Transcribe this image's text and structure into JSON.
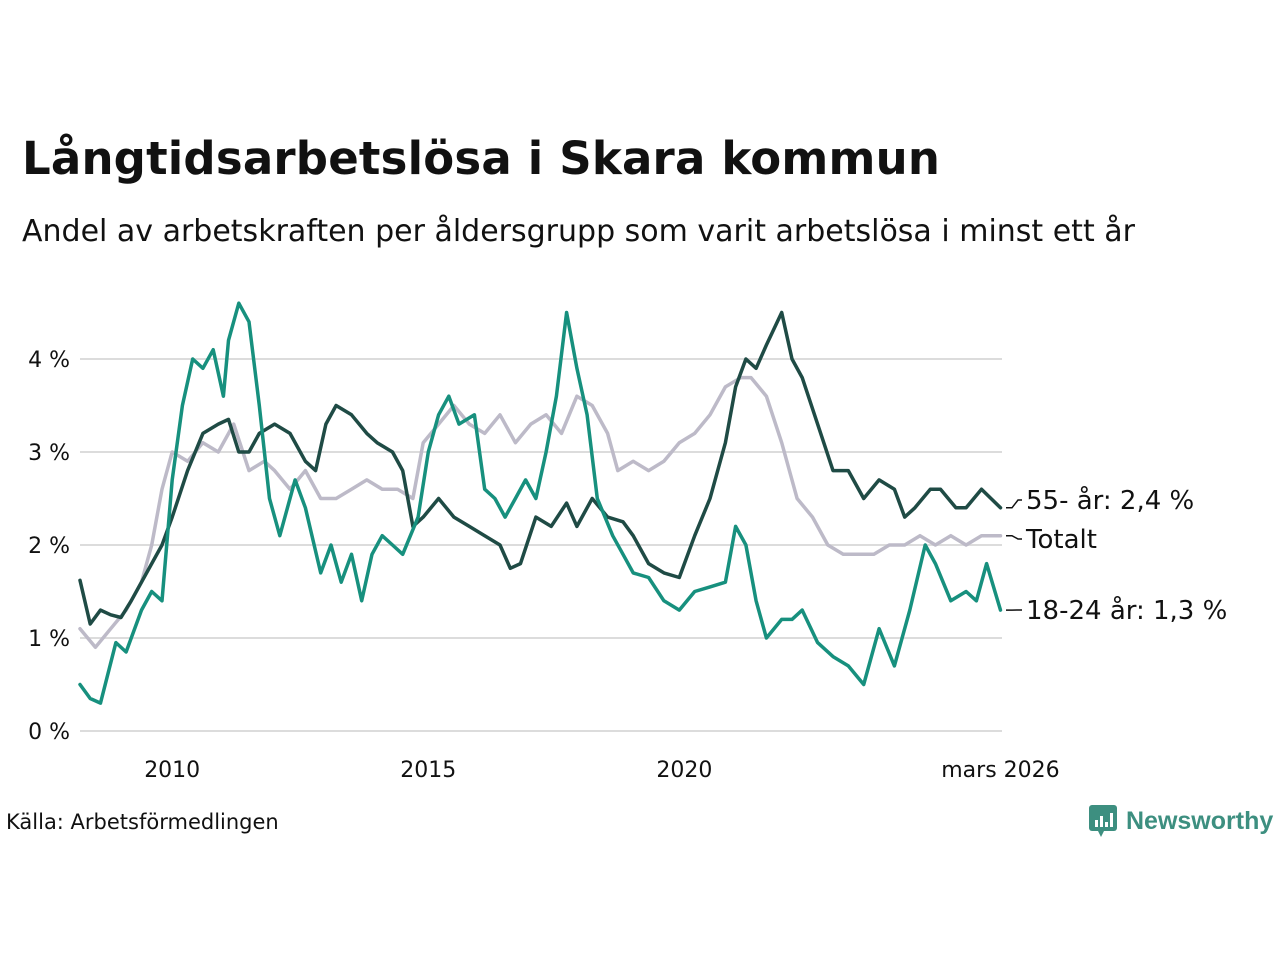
{
  "header": {
    "title": "Långtidsarbetslösa i Skara kommun",
    "subtitle": "Andel av arbetskraften per åldersgrupp som varit arbetslösa i minst ett år"
  },
  "footer": {
    "source": "Källa: Arbetsförmedlingen",
    "brand": "Newsworthy"
  },
  "colors": {
    "series_55": "#1f4b45",
    "series_total": "#bdbac8",
    "series_18_24": "#17907e",
    "grid": "#dcdcdc"
  },
  "chart_data": {
    "type": "line",
    "title": "Långtidsarbetslösa i Skara kommun",
    "subtitle": "Andel av arbetskraften per åldersgrupp som varit arbetslösa i minst ett år",
    "xlabel": "",
    "ylabel": "",
    "xlim": [
      2008.2,
      2026.2
    ],
    "ylim": [
      0,
      4.6
    ],
    "yticks": [
      0,
      1,
      2,
      3,
      4
    ],
    "ytick_labels": [
      "0 %",
      "1 %",
      "2 %",
      "3 %",
      "4 %"
    ],
    "xticks": [
      2010,
      2015,
      2020,
      2026.17
    ],
    "xtick_labels": [
      "2010",
      "2015",
      "2020",
      "mars 2026"
    ],
    "grid": true,
    "legend": "direct labels at right end",
    "series": [
      {
        "name": "Totalt",
        "label": "Totalt",
        "x": [
          2008.2,
          2008.5,
          2008.8,
          2009.1,
          2009.4,
          2009.6,
          2009.8,
          2010.0,
          2010.3,
          2010.6,
          2010.9,
          2011.2,
          2011.5,
          2011.8,
          2012.0,
          2012.3,
          2012.6,
          2012.9,
          2013.2,
          2013.5,
          2013.8,
          2014.1,
          2014.4,
          2014.7,
          2014.9,
          2015.2,
          2015.5,
          2015.8,
          2016.1,
          2016.4,
          2016.7,
          2017.0,
          2017.3,
          2017.6,
          2017.9,
          2018.2,
          2018.5,
          2018.7,
          2019.0,
          2019.3,
          2019.6,
          2019.9,
          2020.2,
          2020.5,
          2020.8,
          2021.1,
          2021.3,
          2021.6,
          2021.9,
          2022.2,
          2022.5,
          2022.8,
          2023.1,
          2023.4,
          2023.7,
          2024.0,
          2024.3,
          2024.6,
          2024.9,
          2025.2,
          2025.5,
          2025.8,
          2026.17
        ],
        "values": [
          1.1,
          0.9,
          1.1,
          1.3,
          1.6,
          2.0,
          2.6,
          3.0,
          2.9,
          3.1,
          3.0,
          3.3,
          2.8,
          2.9,
          2.8,
          2.6,
          2.8,
          2.5,
          2.5,
          2.6,
          2.7,
          2.6,
          2.6,
          2.5,
          3.1,
          3.3,
          3.5,
          3.3,
          3.2,
          3.4,
          3.1,
          3.3,
          3.4,
          3.2,
          3.6,
          3.5,
          3.2,
          2.8,
          2.9,
          2.8,
          2.9,
          3.1,
          3.2,
          3.4,
          3.7,
          3.8,
          3.8,
          3.6,
          3.1,
          2.5,
          2.3,
          2.0,
          1.9,
          1.9,
          1.9,
          2.0,
          2.0,
          2.1,
          2.0,
          2.1,
          2.0,
          2.1,
          2.1
        ]
      },
      {
        "name": "55- år",
        "label": "55- år: 2,4 %",
        "x": [
          2008.2,
          2008.4,
          2008.6,
          2008.8,
          2009.0,
          2009.2,
          2009.5,
          2009.8,
          2010.0,
          2010.3,
          2010.6,
          2010.9,
          2011.1,
          2011.3,
          2011.5,
          2011.7,
          2012.0,
          2012.3,
          2012.6,
          2012.8,
          2013.0,
          2013.2,
          2013.5,
          2013.8,
          2014.0,
          2014.3,
          2014.5,
          2014.7,
          2014.9,
          2015.2,
          2015.5,
          2015.8,
          2016.1,
          2016.4,
          2016.6,
          2016.8,
          2017.1,
          2017.4,
          2017.7,
          2017.9,
          2018.2,
          2018.5,
          2018.8,
          2019.0,
          2019.3,
          2019.6,
          2019.9,
          2020.2,
          2020.5,
          2020.8,
          2021.0,
          2021.2,
          2021.4,
          2021.6,
          2021.9,
          2022.1,
          2022.3,
          2022.6,
          2022.9,
          2023.2,
          2023.5,
          2023.8,
          2024.1,
          2024.3,
          2024.5,
          2024.8,
          2025.0,
          2025.3,
          2025.5,
          2025.8,
          2026.17
        ],
        "values": [
          1.62,
          1.15,
          1.3,
          1.25,
          1.22,
          1.4,
          1.7,
          2.0,
          2.3,
          2.8,
          3.2,
          3.3,
          3.35,
          3.0,
          3.0,
          3.2,
          3.3,
          3.2,
          2.9,
          2.8,
          3.3,
          3.5,
          3.4,
          3.2,
          3.1,
          3.0,
          2.8,
          2.2,
          2.3,
          2.5,
          2.3,
          2.2,
          2.1,
          2.0,
          1.75,
          1.8,
          2.3,
          2.2,
          2.45,
          2.2,
          2.5,
          2.3,
          2.25,
          2.1,
          1.8,
          1.7,
          1.65,
          2.1,
          2.5,
          3.1,
          3.7,
          4.0,
          3.9,
          4.15,
          4.5,
          4.0,
          3.8,
          3.3,
          2.8,
          2.8,
          2.5,
          2.7,
          2.6,
          2.3,
          2.4,
          2.6,
          2.6,
          2.4,
          2.4,
          2.6,
          2.4
        ]
      },
      {
        "name": "18-24 år",
        "label": "18-24 år: 1,3 %",
        "x": [
          2008.2,
          2008.4,
          2008.6,
          2008.9,
          2009.1,
          2009.4,
          2009.6,
          2009.8,
          2010.0,
          2010.2,
          2010.4,
          2010.6,
          2010.8,
          2011.0,
          2011.1,
          2011.3,
          2011.5,
          2011.7,
          2011.9,
          2012.1,
          2012.4,
          2012.6,
          2012.9,
          2013.1,
          2013.3,
          2013.5,
          2013.7,
          2013.9,
          2014.1,
          2014.3,
          2014.5,
          2014.8,
          2015.0,
          2015.2,
          2015.4,
          2015.6,
          2015.9,
          2016.1,
          2016.3,
          2016.5,
          2016.7,
          2016.9,
          2017.1,
          2017.3,
          2017.5,
          2017.7,
          2017.9,
          2018.1,
          2018.3,
          2018.6,
          2018.8,
          2019.0,
          2019.3,
          2019.6,
          2019.9,
          2020.2,
          2020.5,
          2020.8,
          2021.0,
          2021.2,
          2021.4,
          2021.6,
          2021.9,
          2022.1,
          2022.3,
          2022.6,
          2022.9,
          2023.2,
          2023.5,
          2023.8,
          2024.1,
          2024.4,
          2024.7,
          2024.9,
          2025.2,
          2025.5,
          2025.7,
          2025.9,
          2026.17
        ],
        "values": [
          0.5,
          0.35,
          0.3,
          0.95,
          0.85,
          1.3,
          1.5,
          1.4,
          2.7,
          3.5,
          4.0,
          3.9,
          4.1,
          3.6,
          4.2,
          4.6,
          4.4,
          3.5,
          2.5,
          2.1,
          2.7,
          2.4,
          1.7,
          2.0,
          1.6,
          1.9,
          1.4,
          1.9,
          2.1,
          2.0,
          1.9,
          2.3,
          3.0,
          3.4,
          3.6,
          3.3,
          3.4,
          2.6,
          2.5,
          2.3,
          2.5,
          2.7,
          2.5,
          3.0,
          3.6,
          4.5,
          3.9,
          3.4,
          2.5,
          2.1,
          1.9,
          1.7,
          1.65,
          1.4,
          1.3,
          1.5,
          1.55,
          1.6,
          2.2,
          2.0,
          1.4,
          1.0,
          1.2,
          1.2,
          1.3,
          0.95,
          0.8,
          0.7,
          0.5,
          1.1,
          0.7,
          1.3,
          2.0,
          1.8,
          1.4,
          1.5,
          1.4,
          1.8,
          1.3
        ]
      }
    ]
  }
}
